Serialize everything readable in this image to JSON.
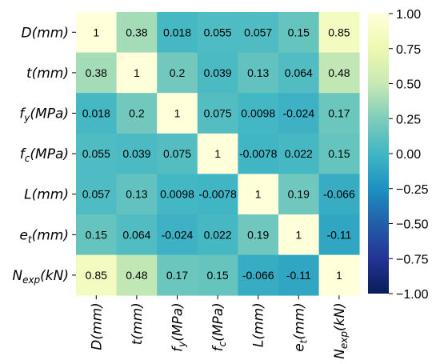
{
  "chart_data": {
    "type": "heatmap",
    "title": "",
    "labels": [
      {
        "id": "D",
        "base": "D",
        "sub": "",
        "unit": "(mm)"
      },
      {
        "id": "t",
        "base": "t",
        "sub": "",
        "unit": "(mm)"
      },
      {
        "id": "fy",
        "base": "f",
        "sub": "y",
        "unit": "(MPa)"
      },
      {
        "id": "fc",
        "base": "f",
        "sub": "c",
        "unit": "(MPa)"
      },
      {
        "id": "L",
        "base": "L",
        "sub": "",
        "unit": "(mm)"
      },
      {
        "id": "et",
        "base": "e",
        "sub": "t",
        "unit": "(mm)"
      },
      {
        "id": "Nexp",
        "base": "N",
        "sub": "exp",
        "unit": "(kN)"
      }
    ],
    "values": [
      [
        1,
        0.38,
        0.018,
        0.055,
        0.057,
        0.15,
        0.85
      ],
      [
        0.38,
        1,
        0.2,
        0.039,
        0.13,
        0.064,
        0.48
      ],
      [
        0.018,
        0.2,
        1,
        0.075,
        0.0098,
        -0.024,
        0.17
      ],
      [
        0.055,
        0.039,
        0.075,
        1,
        -0.0078,
        0.022,
        0.15
      ],
      [
        0.057,
        0.13,
        0.0098,
        -0.0078,
        1,
        0.19,
        -0.066
      ],
      [
        0.15,
        0.064,
        -0.024,
        0.022,
        0.19,
        1,
        -0.11
      ],
      [
        0.85,
        0.48,
        0.17,
        0.15,
        -0.066,
        -0.11,
        1
      ]
    ],
    "value_labels": [
      [
        "1",
        "0.38",
        "0.018",
        "0.055",
        "0.057",
        "0.15",
        "0.85"
      ],
      [
        "0.38",
        "1",
        "0.2",
        "0.039",
        "0.13",
        "0.064",
        "0.48"
      ],
      [
        "0.018",
        "0.2",
        "1",
        "0.075",
        "0.0098",
        "-0.024",
        "0.17"
      ],
      [
        "0.055",
        "0.039",
        "0.075",
        "1",
        "-0.0078",
        "0.022",
        "0.15"
      ],
      [
        "0.057",
        "0.13",
        "0.0098",
        "-0.0078",
        "1",
        "0.19",
        "-0.066"
      ],
      [
        "0.15",
        "0.064",
        "-0.024",
        "0.022",
        "0.19",
        "1",
        "-0.11"
      ],
      [
        "0.85",
        "0.48",
        "0.17",
        "0.15",
        "-0.066",
        "-0.11",
        "1"
      ]
    ],
    "colorbar": {
      "range": [
        -1,
        1
      ],
      "ticks": [
        1.0,
        0.75,
        0.5,
        0.25,
        0.0,
        -0.25,
        -0.5,
        -0.75,
        -1.0
      ],
      "tick_labels": [
        "1.00",
        "0.75",
        "0.50",
        "0.25",
        "0.00",
        "−0.25",
        "−0.50",
        "−0.75",
        "−1.00"
      ],
      "colormap": "YlGnBu",
      "colormap_stops": [
        "#081d58",
        "#253494",
        "#225ea8",
        "#1d91c0",
        "#41b6c4",
        "#7fcdbb",
        "#c7e9b4",
        "#edf8b1",
        "#ffffd9"
      ]
    }
  }
}
